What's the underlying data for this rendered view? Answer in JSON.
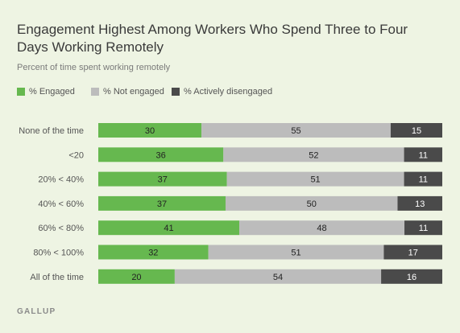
{
  "title": "Engagement Highest Among Workers Who Spend Three to Four Days Working Remotely",
  "subtitle": "Percent of time spent working remotely",
  "source": "GALLUP",
  "colors": {
    "engaged": "#66b84f",
    "not_engaged": "#bcbcbc",
    "actively_disengaged": "#4a4a4a"
  },
  "chart_data": {
    "type": "bar",
    "orientation": "horizontal",
    "stacked": true,
    "categories": [
      "None of the time",
      "<20",
      "20% < 40%",
      "40% < 60%",
      "60% < 80%",
      "80% < 100%",
      "All of the time"
    ],
    "series": [
      {
        "name": "% Engaged",
        "values": [
          30,
          36,
          37,
          37,
          41,
          32,
          20
        ]
      },
      {
        "name": "% Not engaged",
        "values": [
          55,
          52,
          51,
          50,
          48,
          51,
          54
        ]
      },
      {
        "name": "% Actively disengaged",
        "values": [
          15,
          11,
          11,
          13,
          11,
          17,
          16
        ]
      }
    ],
    "legend_position": "top-left",
    "grid": false
  }
}
